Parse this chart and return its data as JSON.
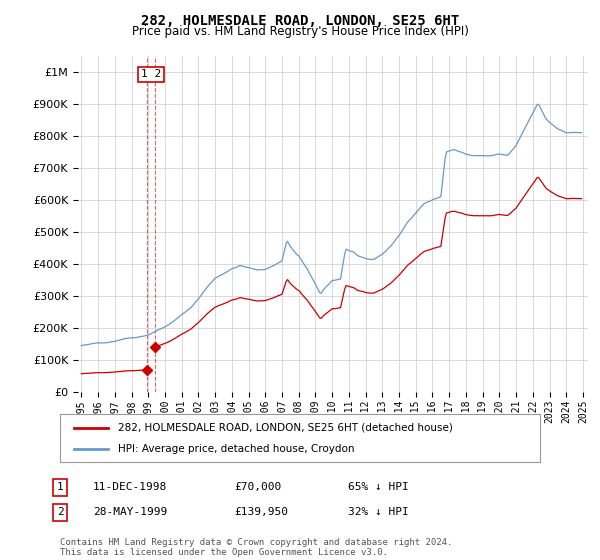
{
  "title": "282, HOLMESDALE ROAD, LONDON, SE25 6HT",
  "subtitle": "Price paid vs. HM Land Registry's House Price Index (HPI)",
  "legend_line1": "282, HOLMESDALE ROAD, LONDON, SE25 6HT (detached house)",
  "legend_line2": "HPI: Average price, detached house, Croydon",
  "table": [
    {
      "num": "1",
      "date": "11-DEC-1998",
      "price": "£70,000",
      "hpi": "65% ↓ HPI"
    },
    {
      "num": "2",
      "date": "28-MAY-1999",
      "price": "£139,950",
      "hpi": "32% ↓ HPI"
    }
  ],
  "footer": "Contains HM Land Registry data © Crown copyright and database right 2024.\nThis data is licensed under the Open Government Licence v3.0.",
  "sale1_x": 1998.94,
  "sale1_y": 70000,
  "sale2_x": 1999.38,
  "sale2_y": 139950,
  "red_color": "#cc0000",
  "blue_color": "#6699cc",
  "ylim": [
    0,
    1050000
  ],
  "xlim_left": 1994.8,
  "xlim_right": 2025.3,
  "background_color": "#ffffff",
  "grid_color": "#cccccc"
}
